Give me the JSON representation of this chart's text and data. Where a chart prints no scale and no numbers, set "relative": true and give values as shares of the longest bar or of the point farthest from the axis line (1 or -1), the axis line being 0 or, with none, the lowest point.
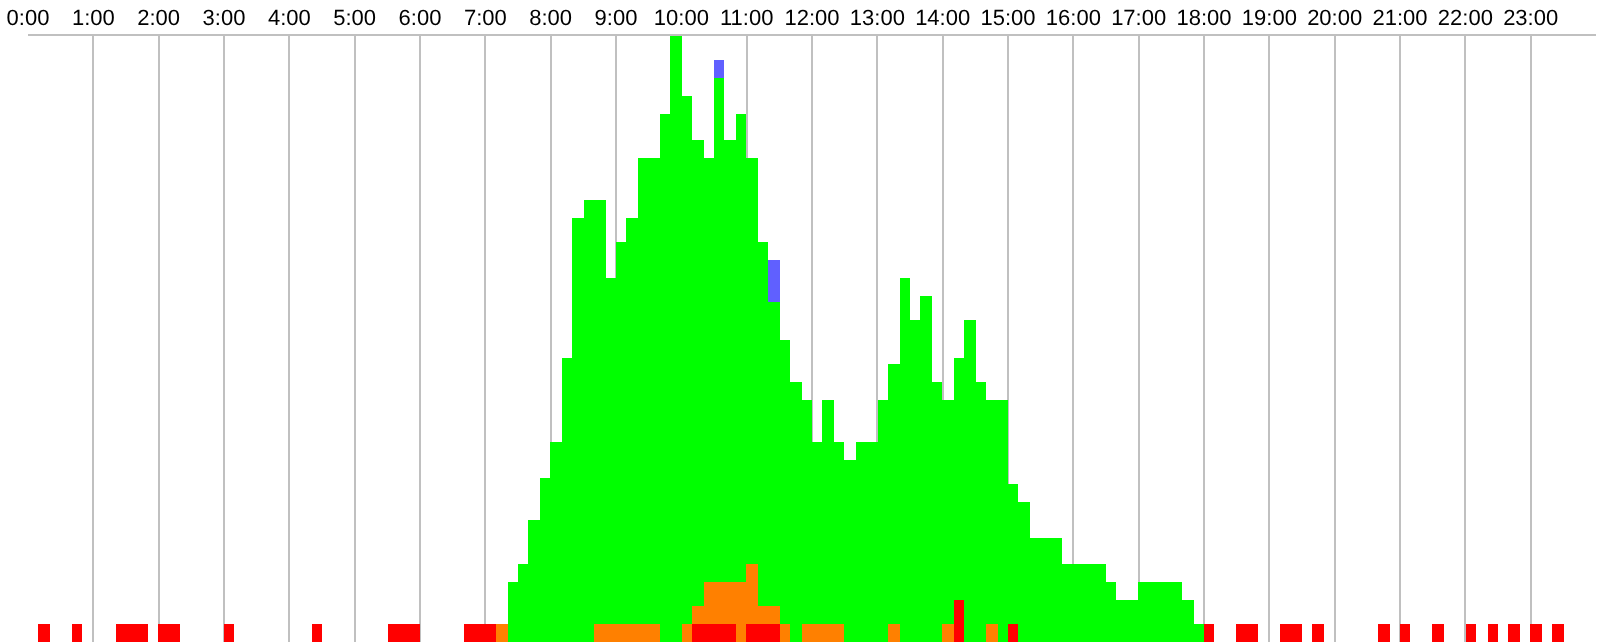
{
  "chart_data": {
    "type": "bar",
    "relative": true,
    "stacked": true,
    "grid": "x",
    "x": [
      0.25,
      0.417,
      0.583,
      0.75,
      0.917,
      1.083,
      1.25,
      1.417,
      1.583,
      1.75,
      1.917,
      2.083,
      2.25,
      2.417,
      2.583,
      2.75,
      2.917,
      3.083,
      3.25,
      3.417,
      3.583,
      3.75,
      3.917,
      4.083,
      4.25,
      4.417,
      4.583,
      4.75,
      4.917,
      5.083,
      5.25,
      5.417,
      5.583,
      5.75,
      5.917,
      6.083,
      6.25,
      6.417,
      6.583,
      6.75,
      6.917,
      7.083,
      7.25,
      7.417,
      7.583,
      7.75,
      7.917,
      8.083,
      8.25,
      8.417,
      8.583,
      8.75,
      8.917,
      9.083,
      9.25,
      9.417,
      9.583,
      9.75,
      9.917,
      10.083,
      10.25,
      10.417,
      10.583,
      10.75,
      10.917,
      11.083,
      11.25,
      11.417,
      11.583,
      11.75,
      11.917,
      12.083,
      12.25,
      12.417,
      12.583,
      12.75,
      12.917,
      13.083,
      13.25,
      13.417,
      13.583,
      13.75,
      13.917,
      14.083,
      14.25,
      14.417,
      14.583,
      14.75,
      14.917,
      15.083,
      15.25,
      15.417,
      15.583,
      15.75,
      15.917,
      16.083,
      16.25,
      16.417,
      16.583,
      16.75,
      16.917,
      17.083,
      17.25,
      17.417,
      17.583,
      17.75,
      17.917,
      18.083,
      18.25,
      18.417,
      18.583,
      18.75,
      18.917,
      19.083,
      19.25,
      19.417,
      19.583,
      19.75,
      19.917,
      20.083,
      20.25,
      20.417,
      20.583,
      20.75,
      20.917,
      21.083,
      21.25,
      21.417,
      21.583,
      21.75,
      21.917,
      22.083,
      22.25,
      22.417,
      22.583,
      22.75,
      22.917,
      23.083,
      23.25,
      23.417
    ],
    "series": [
      {
        "color": "#ff0000",
        "values": [
          0.03,
          null,
          null,
          0.03,
          null,
          null,
          null,
          0.03,
          0.03,
          0.03,
          null,
          0.03,
          0.03,
          null,
          null,
          null,
          null,
          0.03,
          null,
          null,
          null,
          null,
          null,
          null,
          null,
          0.03,
          null,
          null,
          null,
          null,
          null,
          null,
          0.03,
          0.03,
          0.03,
          null,
          null,
          null,
          null,
          0.03,
          0.03,
          0.03,
          null,
          null,
          null,
          null,
          null,
          null,
          null,
          null,
          null,
          null,
          null,
          null,
          null,
          null,
          null,
          null,
          null,
          null,
          0.03,
          0.03,
          0.03,
          0.03,
          null,
          0.03,
          0.03,
          0.03,
          null,
          null,
          null,
          null,
          null,
          null,
          null,
          null,
          null,
          null,
          null,
          null,
          null,
          null,
          null,
          null,
          0.07,
          null,
          null,
          null,
          null,
          0.03,
          null,
          null,
          null,
          null,
          null,
          null,
          null,
          null,
          null,
          null,
          null,
          null,
          null,
          null,
          null,
          null,
          null,
          0.03,
          null,
          null,
          0.03,
          0.03,
          null,
          null,
          0.03,
          0.03,
          null,
          0.03,
          null,
          null,
          null,
          null,
          null,
          0.03,
          null,
          0.03,
          null,
          null,
          0.03,
          null,
          null,
          0.03,
          null,
          0.03,
          null,
          0.03,
          null,
          0.03,
          null,
          0.03
        ]
      },
      {
        "color": "#ff8000",
        "values": [
          null,
          null,
          null,
          null,
          null,
          null,
          null,
          null,
          null,
          null,
          null,
          null,
          null,
          null,
          null,
          null,
          null,
          null,
          null,
          null,
          null,
          null,
          null,
          null,
          null,
          null,
          null,
          null,
          null,
          null,
          null,
          null,
          null,
          null,
          null,
          null,
          null,
          null,
          null,
          null,
          null,
          null,
          0.03,
          null,
          null,
          null,
          null,
          null,
          null,
          null,
          null,
          0.03,
          0.03,
          0.03,
          0.03,
          0.03,
          0.03,
          null,
          null,
          0.03,
          0.03,
          0.07,
          0.07,
          0.07,
          0.1,
          0.1,
          0.03,
          0.03,
          0.03,
          null,
          0.03,
          0.03,
          0.03,
          0.03,
          null,
          null,
          null,
          null,
          0.03,
          null,
          null,
          null,
          null,
          0.03,
          null,
          null,
          null,
          0.03,
          null,
          null,
          null,
          null,
          null,
          null,
          null,
          null,
          null,
          null,
          null,
          null,
          null,
          null,
          null,
          null,
          null,
          null,
          null,
          null,
          null,
          null,
          null,
          null,
          null,
          null,
          null,
          null,
          null,
          null,
          null,
          null,
          null,
          null,
          null,
          null,
          null,
          null,
          null,
          null,
          null,
          null,
          null,
          null,
          null,
          null,
          null,
          null,
          null,
          null,
          null,
          null
        ]
      },
      {
        "color": "#00ff00",
        "values": [
          null,
          null,
          null,
          null,
          null,
          null,
          null,
          null,
          null,
          null,
          null,
          null,
          null,
          null,
          null,
          null,
          null,
          null,
          null,
          null,
          null,
          null,
          null,
          null,
          null,
          null,
          null,
          null,
          null,
          null,
          null,
          null,
          null,
          null,
          null,
          null,
          null,
          null,
          null,
          null,
          null,
          null,
          null,
          0.1,
          0.13,
          0.2,
          0.27,
          0.33,
          0.47,
          0.7,
          0.73,
          0.7,
          0.57,
          0.63,
          0.67,
          0.77,
          0.77,
          0.87,
          1,
          0.87,
          0.77,
          0.7,
          0.83,
          0.73,
          0.77,
          0.67,
          0.6,
          0.5,
          0.47,
          0.43,
          0.37,
          0.3,
          0.37,
          0.3,
          0.3,
          0.33,
          0.33,
          0.4,
          0.43,
          0.6,
          0.53,
          0.57,
          0.43,
          0.37,
          0.4,
          0.53,
          0.43,
          0.37,
          0.4,
          0.23,
          0.23,
          0.17,
          0.17,
          0.17,
          0.13,
          0.13,
          0.13,
          0.13,
          0.1,
          0.07,
          0.07,
          0.1,
          0.1,
          0.1,
          0.1,
          0.07,
          0.03,
          null,
          null,
          null,
          null,
          null,
          null,
          null,
          null,
          null,
          null,
          null,
          null,
          null,
          null,
          null,
          null,
          null,
          null,
          null,
          null,
          null,
          null,
          null,
          null,
          null,
          null,
          null,
          null,
          null,
          null,
          null,
          null,
          null
        ]
      },
      {
        "color": "#6060ff",
        "values": [
          null,
          null,
          null,
          null,
          null,
          null,
          null,
          null,
          null,
          null,
          null,
          null,
          null,
          null,
          null,
          null,
          null,
          null,
          null,
          null,
          null,
          null,
          null,
          null,
          null,
          null,
          null,
          null,
          null,
          null,
          null,
          null,
          null,
          null,
          null,
          null,
          null,
          null,
          null,
          null,
          null,
          null,
          null,
          null,
          null,
          null,
          null,
          null,
          null,
          null,
          null,
          null,
          null,
          null,
          null,
          null,
          null,
          null,
          null,
          null,
          null,
          null,
          0.03,
          null,
          null,
          null,
          null,
          0.07,
          null,
          null,
          null,
          null,
          null,
          null,
          null,
          null,
          null,
          null,
          null,
          null,
          null,
          null,
          null,
          null,
          null,
          null,
          null,
          null,
          null,
          null,
          null,
          null,
          null,
          null,
          null,
          null,
          null,
          null,
          null,
          null,
          null,
          null,
          null,
          null,
          null,
          null,
          null,
          null,
          null,
          null,
          null,
          null,
          null,
          null,
          null,
          null,
          null,
          null,
          null,
          null,
          null,
          null,
          null,
          null,
          null,
          null,
          null,
          null,
          null,
          null,
          null,
          null,
          null,
          null,
          null,
          null,
          null,
          null,
          null,
          null
        ]
      }
    ],
    "xlim": [
      0,
      24
    ],
    "xticks": [
      {
        "value": 0,
        "label": "0:00"
      },
      {
        "value": 1,
        "label": "1:00"
      },
      {
        "value": 2,
        "label": "2:00"
      },
      {
        "value": 3,
        "label": "3:00"
      },
      {
        "value": 4,
        "label": "4:00"
      },
      {
        "value": 5,
        "label": "5:00"
      },
      {
        "value": 6,
        "label": "6:00"
      },
      {
        "value": 7,
        "label": "7:00"
      },
      {
        "value": 8,
        "label": "8:00"
      },
      {
        "value": 9,
        "label": "9:00"
      },
      {
        "value": 10,
        "label": "10:00"
      },
      {
        "value": 11,
        "label": "11:00"
      },
      {
        "value": 12,
        "label": "12:00"
      },
      {
        "value": 13,
        "label": "13:00"
      },
      {
        "value": 14,
        "label": "14:00"
      },
      {
        "value": 15,
        "label": "15:00"
      },
      {
        "value": 16,
        "label": "16:00"
      },
      {
        "value": 17,
        "label": "17:00"
      },
      {
        "value": 18,
        "label": "18:00"
      },
      {
        "value": 19,
        "label": "19:00"
      },
      {
        "value": 20,
        "label": "20:00"
      },
      {
        "value": 21,
        "label": "21:00"
      },
      {
        "value": 22,
        "label": "22:00"
      },
      {
        "value": 23,
        "label": "23:00"
      }
    ]
  }
}
